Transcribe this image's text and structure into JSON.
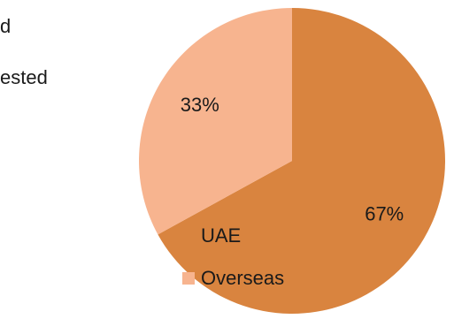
{
  "text_fragments": [
    "d",
    "ested"
  ],
  "chart_data": {
    "type": "pie",
    "title": "",
    "categories": [
      "UAE",
      "Overseas"
    ],
    "values": [
      67,
      33
    ],
    "data_labels": [
      "67%",
      "33%"
    ],
    "colors": [
      "#D9843F",
      "#F7B48F"
    ],
    "start_angle_deg": 0,
    "direction": "clockwise",
    "legend": {
      "position": "left",
      "entries": [
        "UAE",
        "Overseas"
      ]
    }
  }
}
